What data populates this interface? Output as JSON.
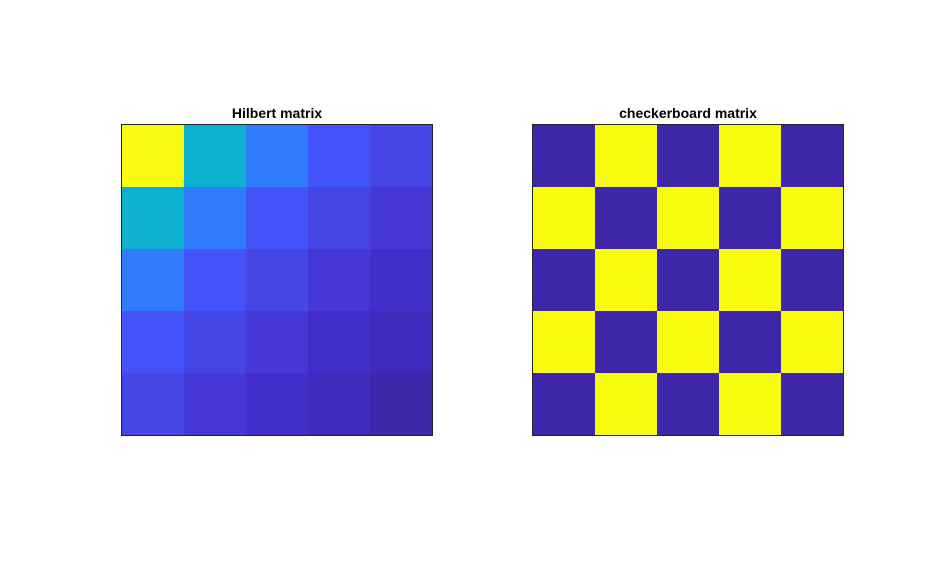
{
  "chart_data": [
    {
      "type": "heatmap",
      "title": "Hilbert matrix",
      "xlabel": "",
      "ylabel": "",
      "rows": 5,
      "cols": 5,
      "values": [
        [
          1.0,
          0.5,
          0.3333,
          0.25,
          0.2
        ],
        [
          0.5,
          0.3333,
          0.25,
          0.2,
          0.1667
        ],
        [
          0.3333,
          0.25,
          0.2,
          0.1667,
          0.1429
        ],
        [
          0.25,
          0.2,
          0.1667,
          0.1429,
          0.125
        ],
        [
          0.2,
          0.1667,
          0.1429,
          0.125,
          0.1111
        ]
      ],
      "colormap": "parula",
      "axes_ticks": "none",
      "grid": false
    },
    {
      "type": "heatmap",
      "title": "checkerboard matrix",
      "xlabel": "",
      "ylabel": "",
      "rows": 5,
      "cols": 5,
      "values": [
        [
          0,
          1,
          0,
          1,
          0
        ],
        [
          1,
          0,
          1,
          0,
          1
        ],
        [
          0,
          1,
          0,
          1,
          0
        ],
        [
          1,
          0,
          1,
          0,
          1
        ],
        [
          0,
          1,
          0,
          1,
          0
        ]
      ],
      "colormap": "parula",
      "axes_ticks": "none",
      "grid": false
    }
  ],
  "colors": {
    "low": "#3e26a8",
    "high": "#f9fb0e",
    "hilbert_cells": [
      [
        "#f9fb15",
        "#0bb1cf",
        "#317cfd",
        "#4253fa",
        "#4645e6"
      ],
      [
        "#0bb1cf",
        "#317cfd",
        "#4253fa",
        "#4645e6",
        "#4538d6"
      ],
      [
        "#317cfd",
        "#4253fa",
        "#4645e6",
        "#4538d6",
        "#412fc9"
      ],
      [
        "#4253fa",
        "#4645e6",
        "#4538d6",
        "#412fc9",
        "#3e2bbd"
      ],
      [
        "#4645e6",
        "#4538d6",
        "#412fc9",
        "#3e2bbd",
        "#3d28a9"
      ]
    ],
    "checker_dark": "#3e26a8",
    "checker_light": "#f9fb0e",
    "axes_border": "#262626"
  }
}
